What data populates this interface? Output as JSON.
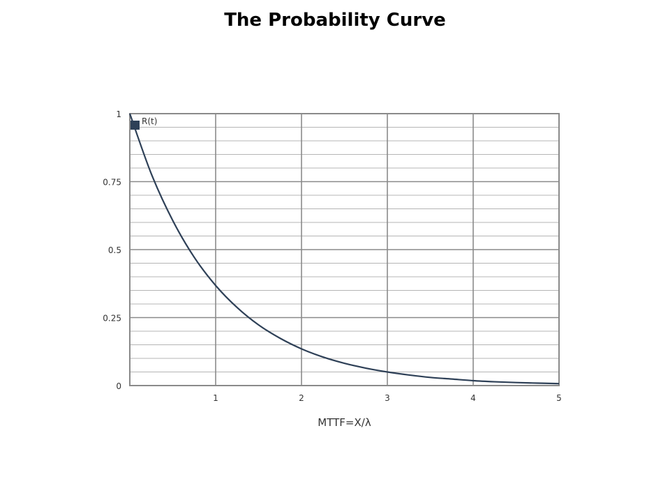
{
  "chart_data": {
    "type": "line",
    "title": "The Probability Curve",
    "xlabel": "MTTF=X/λ",
    "ylabel": "",
    "xlim": [
      0,
      5
    ],
    "ylim": [
      0,
      1
    ],
    "x_ticks": [
      1,
      2,
      3,
      4,
      5
    ],
    "x_tick_labels": [
      "1",
      "2",
      "3",
      "4",
      "5"
    ],
    "y_ticks": [
      0,
      0.25,
      0.5,
      0.75,
      1
    ],
    "y_tick_labels": [
      "0",
      "0.25",
      "0.5",
      "0.75",
      "1"
    ],
    "grid": true,
    "legend_position": "top-left",
    "series": [
      {
        "name": "R(t)",
        "color": "#2e4057",
        "x": [
          0,
          0.25,
          0.5,
          0.75,
          1,
          1.25,
          1.5,
          1.75,
          2,
          2.25,
          2.5,
          2.75,
          3,
          3.25,
          3.5,
          3.75,
          4,
          4.25,
          4.5,
          4.75,
          5
        ],
        "y": [
          1,
          0.779,
          0.607,
          0.472,
          0.368,
          0.287,
          0.223,
          0.174,
          0.135,
          0.105,
          0.082,
          0.064,
          0.05,
          0.039,
          0.03,
          0.024,
          0.018,
          0.014,
          0.011,
          0.009,
          0.007
        ]
      }
    ]
  }
}
